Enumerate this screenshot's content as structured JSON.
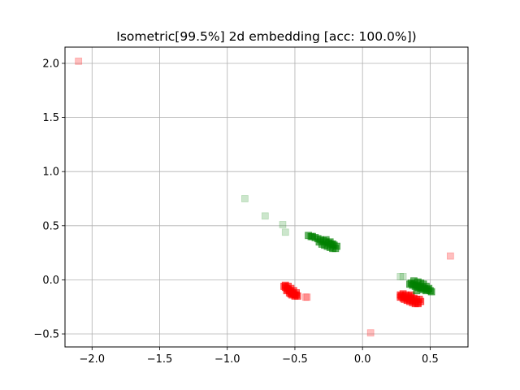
{
  "chart_data": {
    "type": "scatter",
    "title": "Isometric[99.5%] 2d embedding [acc: 100.0%])",
    "xlim": [
      -2.2,
      0.78
    ],
    "ylim": [
      -0.62,
      2.15
    ],
    "xticks": [
      -2.0,
      -1.5,
      -1.0,
      -0.5,
      0.0,
      0.5
    ],
    "xtick_labels": [
      "−2.0",
      "−1.5",
      "−1.0",
      "−0.5",
      "0.0",
      "0.5"
    ],
    "yticks": [
      -0.5,
      0.0,
      0.5,
      1.0,
      1.5,
      2.0
    ],
    "ytick_labels": [
      "−0.5",
      "0.0",
      "0.5",
      "1.0",
      "1.5",
      "2.0"
    ],
    "grid": true,
    "marker": "square",
    "series": [
      {
        "color": "#ff0000",
        "opacity": 0.25,
        "points": [
          [
            -2.1,
            2.02
          ],
          [
            0.65,
            0.22
          ],
          [
            0.06,
            -0.49
          ],
          [
            -0.42,
            -0.16
          ],
          [
            -0.41,
            -0.16
          ]
        ]
      },
      {
        "color": "#008000",
        "opacity": 0.2,
        "points": [
          [
            -0.87,
            0.75
          ],
          [
            -0.72,
            0.59
          ],
          [
            -0.59,
            0.51
          ],
          [
            -0.57,
            0.44
          ],
          [
            0.28,
            0.03
          ],
          [
            0.3,
            0.03
          ]
        ]
      },
      {
        "color": "#ff0000",
        "opacity": 0.6,
        "points": [
          [
            -0.58,
            -0.06
          ],
          [
            -0.57,
            -0.07
          ],
          [
            -0.56,
            -0.08
          ],
          [
            -0.55,
            -0.09
          ],
          [
            -0.54,
            -0.1
          ],
          [
            -0.53,
            -0.11
          ],
          [
            -0.52,
            -0.12
          ],
          [
            -0.51,
            -0.13
          ],
          [
            -0.5,
            -0.14
          ],
          [
            -0.49,
            -0.14
          ],
          [
            -0.57,
            -0.05
          ],
          [
            -0.55,
            -0.06
          ],
          [
            -0.53,
            -0.08
          ],
          [
            -0.51,
            -0.1
          ],
          [
            -0.49,
            -0.12
          ],
          [
            -0.56,
            -0.1
          ],
          [
            -0.54,
            -0.12
          ],
          [
            -0.52,
            -0.14
          ],
          [
            -0.5,
            -0.15
          ],
          [
            -0.48,
            -0.15
          ],
          [
            -0.53,
            -0.13
          ],
          [
            0.28,
            -0.14
          ],
          [
            0.29,
            -0.15
          ],
          [
            0.31,
            -0.16
          ],
          [
            0.33,
            -0.17
          ],
          [
            0.35,
            -0.18
          ],
          [
            0.37,
            -0.19
          ],
          [
            0.39,
            -0.2
          ],
          [
            0.41,
            -0.21
          ],
          [
            0.43,
            -0.2
          ],
          [
            0.3,
            -0.13
          ],
          [
            0.32,
            -0.14
          ],
          [
            0.34,
            -0.15
          ],
          [
            0.36,
            -0.16
          ],
          [
            0.38,
            -0.17
          ],
          [
            0.4,
            -0.18
          ],
          [
            0.42,
            -0.18
          ],
          [
            0.31,
            -0.18
          ],
          [
            0.33,
            -0.19
          ],
          [
            0.35,
            -0.2
          ],
          [
            0.37,
            -0.21
          ],
          [
            0.39,
            -0.22
          ],
          [
            0.41,
            -0.22
          ],
          [
            0.3,
            -0.17
          ],
          [
            0.36,
            -0.14
          ],
          [
            0.28,
            -0.16
          ]
        ]
      },
      {
        "color": "#008000",
        "opacity": 0.6,
        "points": [
          [
            -0.4,
            0.41
          ],
          [
            -0.38,
            0.4
          ],
          [
            -0.35,
            0.39
          ],
          [
            -0.33,
            0.38
          ],
          [
            -0.31,
            0.37
          ],
          [
            -0.29,
            0.36
          ],
          [
            -0.27,
            0.35
          ],
          [
            -0.25,
            0.34
          ],
          [
            -0.23,
            0.33
          ],
          [
            -0.21,
            0.32
          ],
          [
            -0.19,
            0.31
          ],
          [
            -0.3,
            0.33
          ],
          [
            -0.28,
            0.32
          ],
          [
            -0.26,
            0.31
          ],
          [
            -0.24,
            0.3
          ],
          [
            -0.22,
            0.29
          ],
          [
            -0.2,
            0.29
          ],
          [
            -0.32,
            0.35
          ],
          [
            -0.27,
            0.37
          ],
          [
            -0.24,
            0.35
          ],
          [
            -0.22,
            0.33
          ],
          [
            -0.37,
            0.4
          ],
          [
            0.36,
            -0.03
          ],
          [
            0.38,
            -0.04
          ],
          [
            0.4,
            -0.05
          ],
          [
            0.42,
            -0.06
          ],
          [
            0.44,
            -0.07
          ],
          [
            0.46,
            -0.08
          ],
          [
            0.48,
            -0.09
          ],
          [
            0.5,
            -0.1
          ],
          [
            0.37,
            -0.05
          ],
          [
            0.39,
            -0.06
          ],
          [
            0.41,
            -0.07
          ],
          [
            0.43,
            -0.08
          ],
          [
            0.45,
            -0.09
          ],
          [
            0.47,
            -0.1
          ],
          [
            0.38,
            -0.01
          ],
          [
            0.41,
            -0.02
          ],
          [
            0.43,
            -0.03
          ],
          [
            0.45,
            -0.04
          ],
          [
            0.47,
            -0.06
          ],
          [
            0.49,
            -0.08
          ],
          [
            0.51,
            -0.11
          ],
          [
            0.35,
            -0.04
          ],
          [
            0.4,
            -0.1
          ]
        ]
      }
    ]
  }
}
